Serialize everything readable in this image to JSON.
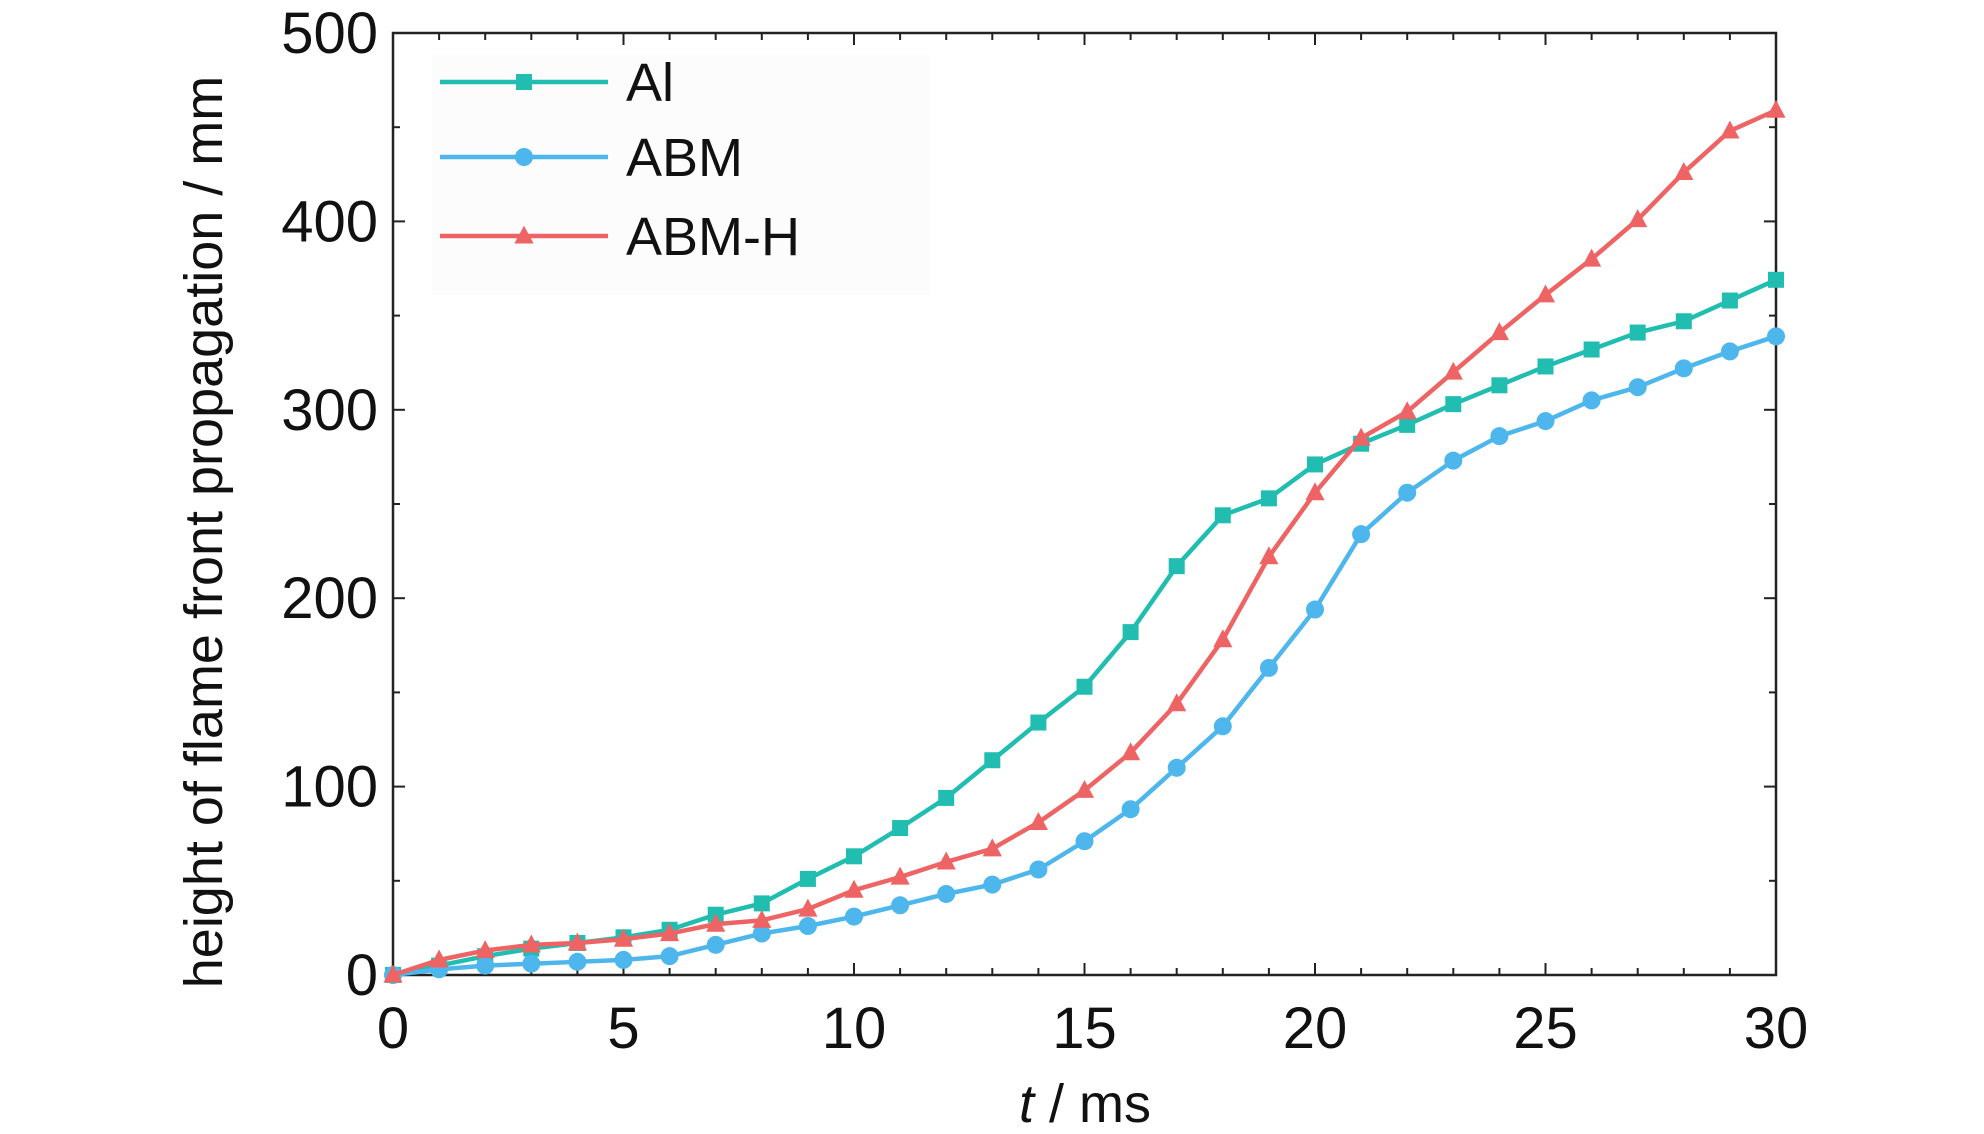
{
  "chart_data": {
    "type": "line",
    "title": "",
    "xlabel_italic": "t",
    "xlabel_rest": " / ms",
    "ylabel": "height of flame front propagation / mm",
    "xlim": [
      0,
      30
    ],
    "ylim": [
      0,
      500
    ],
    "xticks": [
      "0",
      "5",
      "10",
      "15",
      "20",
      "25",
      "30"
    ],
    "yticks": [
      "0",
      "100",
      "200",
      "300",
      "400",
      "500"
    ],
    "grid": false,
    "legend_position": "top-left",
    "x": [
      0,
      1,
      2,
      3,
      4,
      5,
      6,
      7,
      8,
      9,
      10,
      11,
      12,
      13,
      14,
      15,
      16,
      17,
      18,
      19,
      20,
      21,
      22,
      23,
      24,
      25,
      26,
      27,
      28,
      29,
      30
    ],
    "series": [
      {
        "name": "Al",
        "marker": "square",
        "color": "#20BDB0",
        "values": [
          0,
          5,
          10,
          14,
          17,
          20,
          24,
          32,
          38,
          51,
          63,
          78,
          94,
          114,
          134,
          153,
          182,
          217,
          244,
          253,
          271,
          282,
          292,
          303,
          313,
          323,
          332,
          341,
          347,
          358,
          369
        ]
      },
      {
        "name": "ABM",
        "marker": "circle",
        "color": "#4DB6EC",
        "values": [
          0,
          3,
          5,
          6,
          7,
          8,
          10,
          16,
          22,
          26,
          31,
          37,
          43,
          48,
          56,
          71,
          88,
          110,
          132,
          163,
          194,
          234,
          256,
          273,
          286,
          294,
          305,
          312,
          322,
          331,
          339
        ]
      },
      {
        "name": "ABM-H",
        "marker": "triangle",
        "color": "#EE6464",
        "values": [
          0,
          8,
          13,
          16,
          17,
          19,
          22,
          27,
          29,
          35,
          45,
          52,
          60,
          67,
          81,
          98,
          118,
          144,
          178,
          222,
          256,
          285,
          299,
          320,
          341,
          361,
          380,
          401,
          426,
          448,
          459
        ]
      }
    ]
  }
}
